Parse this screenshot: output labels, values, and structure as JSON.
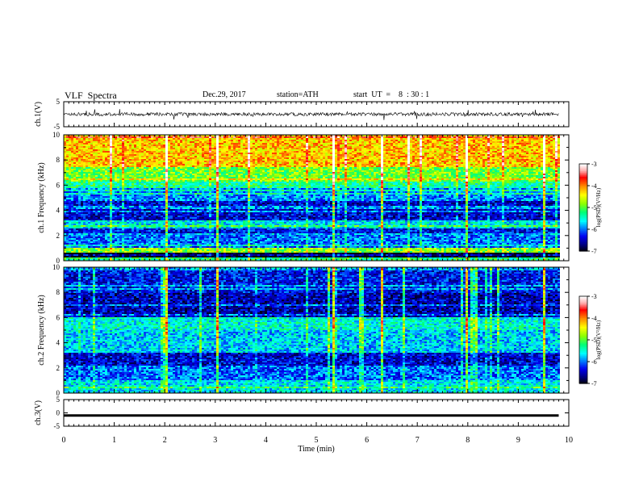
{
  "header": {
    "title": "VLF  Spectra",
    "date": "Dec.29, 2017",
    "station": "station=ATH",
    "start": "start  UT  =    8  : 30 : 1"
  },
  "chart_data": [
    {
      "type": "line",
      "panel": "ch1-waveform",
      "ylabel": "ch.1(V)",
      "ylim": [
        -5,
        5
      ],
      "yticks": [
        "5",
        "-5"
      ],
      "xlim": [
        0,
        10
      ],
      "data_extent_min": [
        0,
        9.8
      ]
    },
    {
      "type": "heatmap",
      "panel": "ch1-spectrogram",
      "ylabel": "ch.1  Frequency  (kHz)",
      "ylim": [
        0,
        10
      ],
      "yticks": [
        "0",
        "2",
        "4",
        "6",
        "8",
        "10"
      ],
      "xlim": [
        0,
        10
      ],
      "data_extent_min": [
        0,
        9.8
      ],
      "colorbar": {
        "label": "log(PSD)(V²/Hz)",
        "ticks": [
          "-3",
          "-4",
          "-5",
          "-6",
          "-7"
        ],
        "range": [
          -7,
          -3
        ]
      },
      "frequency_bands_log_psd": [
        {
          "from_khz": 0,
          "to_khz": 0.3,
          "level": -5.2
        },
        {
          "from_khz": 0.3,
          "to_khz": 0.6,
          "level": -7.0
        },
        {
          "from_khz": 0.6,
          "to_khz": 1.0,
          "level": -4.8
        },
        {
          "from_khz": 1.0,
          "to_khz": 2.0,
          "level": -6.0
        },
        {
          "from_khz": 2.0,
          "to_khz": 2.6,
          "level": -6.3
        },
        {
          "from_khz": 2.6,
          "to_khz": 3.2,
          "level": -5.6
        },
        {
          "from_khz": 3.2,
          "to_khz": 4.8,
          "level": -6.4
        },
        {
          "from_khz": 4.8,
          "to_khz": 5.8,
          "level": -5.9
        },
        {
          "from_khz": 5.8,
          "to_khz": 6.3,
          "level": -5.3
        },
        {
          "from_khz": 6.3,
          "to_khz": 7.5,
          "level": -4.9
        },
        {
          "from_khz": 7.5,
          "to_khz": 10.0,
          "level": -4.2
        }
      ]
    },
    {
      "type": "heatmap",
      "panel": "ch2-spectrogram",
      "ylabel": "ch.2  Frequency  (kHz)",
      "ylim": [
        0,
        10
      ],
      "yticks": [
        "0",
        "2",
        "4",
        "6",
        "8",
        "10"
      ],
      "xlim": [
        0,
        10
      ],
      "data_extent_min": [
        0,
        9.8
      ],
      "colorbar": {
        "label": "log(PSD)(V²/Hz)",
        "ticks": [
          "-3",
          "-4",
          "-5",
          "-6",
          "-7"
        ],
        "range": [
          -7,
          -3
        ]
      },
      "frequency_bands_log_psd": [
        {
          "from_khz": 0,
          "to_khz": 1.0,
          "level": -5.6
        },
        {
          "from_khz": 1.0,
          "to_khz": 2.2,
          "level": -6.0
        },
        {
          "from_khz": 2.2,
          "to_khz": 3.2,
          "level": -6.4
        },
        {
          "from_khz": 3.2,
          "to_khz": 5.0,
          "level": -5.7
        },
        {
          "from_khz": 5.0,
          "to_khz": 6.0,
          "level": -5.5
        },
        {
          "from_khz": 6.0,
          "to_khz": 8.0,
          "level": -6.5
        },
        {
          "from_khz": 8.0,
          "to_khz": 10.0,
          "level": -6.3
        }
      ]
    },
    {
      "type": "line",
      "panel": "ch3-waveform",
      "ylabel": "ch.3(V)",
      "ylim": [
        -5,
        5
      ],
      "yticks": [
        "5",
        "0",
        "-5"
      ],
      "xlim": [
        0,
        10
      ],
      "data_extent_min": [
        0,
        9.8
      ],
      "level_v": -1.0
    }
  ],
  "x_axis": {
    "label": "Time  (min)",
    "ticks": [
      "0",
      "1",
      "2",
      "3",
      "4",
      "5",
      "6",
      "7",
      "8",
      "9",
      "10"
    ]
  },
  "colors": {
    "background": "#ffffff",
    "axis": "#000000",
    "colormap": [
      "#000000",
      "#00008b",
      "#0000ff",
      "#0096ff",
      "#00ffff",
      "#00ff80",
      "#80ff00",
      "#ffff00",
      "#ff8000",
      "#ff0000",
      "#ffc0c0",
      "#ffffff"
    ]
  }
}
